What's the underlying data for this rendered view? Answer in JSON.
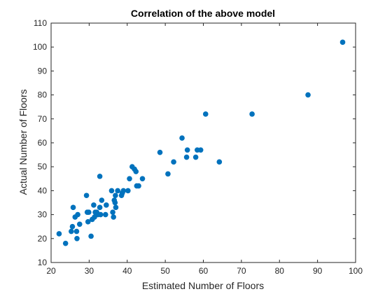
{
  "chart_data": {
    "type": "scatter",
    "title": "Correlation of the above model",
    "xlabel": "Estimated Number of Floors",
    "ylabel": "Actual Number of Floors",
    "xlim": [
      20,
      100
    ],
    "ylim": [
      10,
      110
    ],
    "xticks": [
      20,
      30,
      40,
      50,
      60,
      70,
      80,
      90,
      100
    ],
    "yticks": [
      10,
      20,
      30,
      40,
      50,
      60,
      70,
      80,
      90,
      100,
      110
    ],
    "grid": false,
    "legend": "none",
    "marker_color": "#0072BD",
    "series": [
      {
        "points": [
          [
            22.1,
            22
          ],
          [
            23.8,
            18
          ],
          [
            25.3,
            23
          ],
          [
            25.6,
            25
          ],
          [
            25.8,
            33
          ],
          [
            26.3,
            29
          ],
          [
            26.7,
            23
          ],
          [
            26.8,
            20
          ],
          [
            27.0,
            30
          ],
          [
            27.5,
            26
          ],
          [
            29.3,
            38
          ],
          [
            29.5,
            31
          ],
          [
            29.7,
            27
          ],
          [
            29.9,
            31
          ],
          [
            30.5,
            21
          ],
          [
            30.8,
            28
          ],
          [
            31.2,
            34
          ],
          [
            31.4,
            29
          ],
          [
            31.6,
            31
          ],
          [
            32.0,
            31
          ],
          [
            32.3,
            30
          ],
          [
            32.8,
            46
          ],
          [
            32.8,
            33
          ],
          [
            33.0,
            30
          ],
          [
            33.3,
            36
          ],
          [
            34.3,
            30
          ],
          [
            34.5,
            34
          ],
          [
            35.9,
            40
          ],
          [
            36.2,
            31
          ],
          [
            36.4,
            29
          ],
          [
            36.6,
            36
          ],
          [
            36.8,
            35
          ],
          [
            36.9,
            38
          ],
          [
            37.0,
            33
          ],
          [
            37.5,
            40
          ],
          [
            38.5,
            38
          ],
          [
            38.7,
            39
          ],
          [
            39.0,
            40
          ],
          [
            40.2,
            40
          ],
          [
            40.6,
            45
          ],
          [
            41.3,
            50
          ],
          [
            41.9,
            49
          ],
          [
            42.3,
            48
          ],
          [
            42.5,
            42
          ],
          [
            43.0,
            42
          ],
          [
            44.0,
            45
          ],
          [
            48.6,
            56
          ],
          [
            50.7,
            47
          ],
          [
            52.2,
            52
          ],
          [
            54.4,
            62
          ],
          [
            55.6,
            54
          ],
          [
            55.8,
            57
          ],
          [
            58.0,
            54
          ],
          [
            58.4,
            57
          ],
          [
            59.3,
            57
          ],
          [
            60.6,
            72
          ],
          [
            64.2,
            52
          ],
          [
            72.8,
            72
          ],
          [
            87.5,
            80
          ],
          [
            96.6,
            102
          ]
        ]
      }
    ]
  }
}
